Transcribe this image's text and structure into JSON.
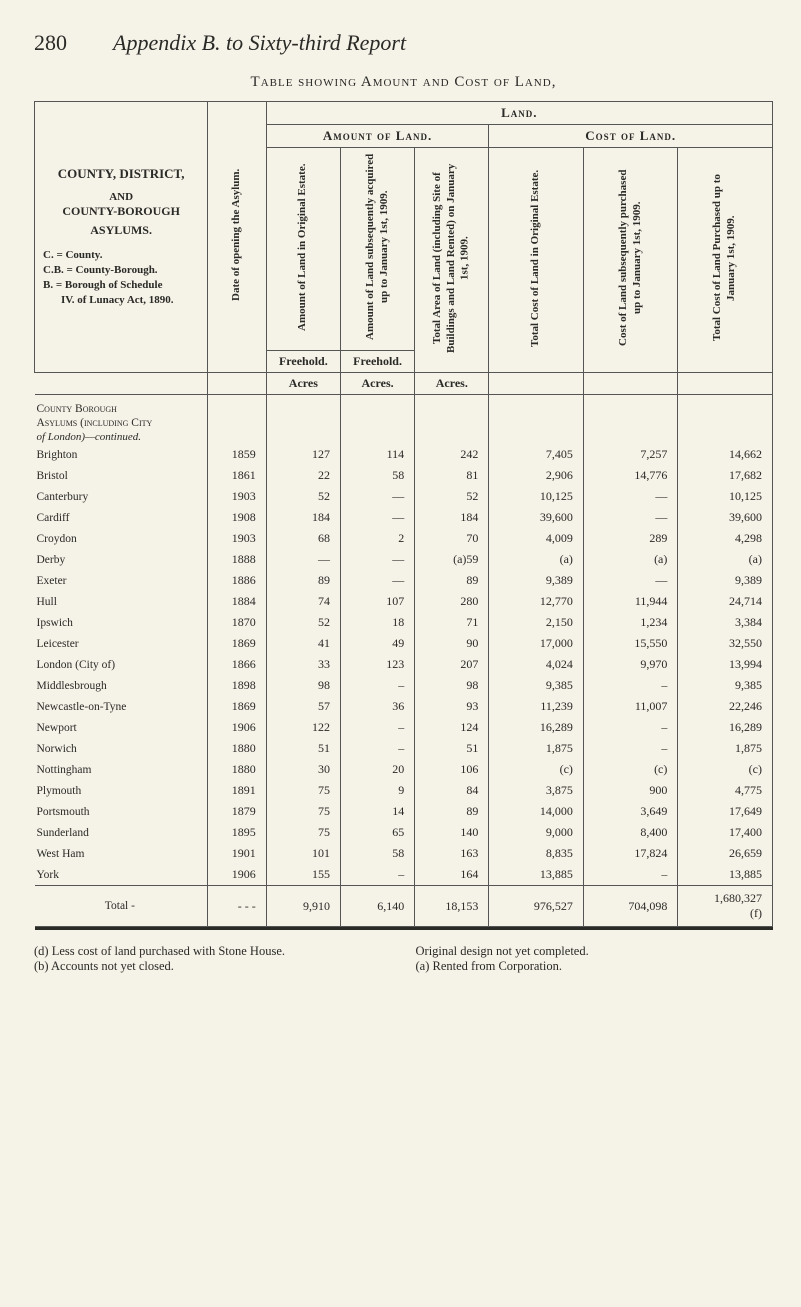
{
  "page_number": "280",
  "page_title_prefix": "Appendix B.",
  "page_title_rest": " to Sixty-third Report",
  "table_caption_prefix": "Table showing",
  "table_caption_rest": " Amount and Cost of Land,",
  "header": {
    "land": "Land.",
    "amount_of_land": "Amount of Land.",
    "cost_of_land": "Cost of Land."
  },
  "stub": {
    "county_district": "COUNTY, DISTRICT,",
    "and": "AND",
    "county_borough": "COUNTY-BOROUGH",
    "asylums": "ASYLUMS.",
    "lineC": "C. = County.",
    "lineCB": "C.B. = County-Borough.",
    "lineB": "B. = Borough of Schedule",
    "lineIV": "IV. of Lunacy Act, 1890."
  },
  "col_v": {
    "open": "Date of opening the Asylum.",
    "a1": "Amount of Land in Original Estate.",
    "a2": "Amount of Land subsequently acquired up to January 1st, 1909.",
    "a3": "Total Area of Land (including Site of Buildings and Land Rented) on January 1st, 1909.",
    "c1": "Total Cost of Land in Original Estate.",
    "c2": "Cost of Land subsequently purchased up to January 1st, 1909.",
    "c3": "Total Cost of Land Purchased up to January 1st, 1909."
  },
  "sub": {
    "freehold": "Freehold.",
    "acres": "Acres",
    "acres_dot": "Acres."
  },
  "section_head": {
    "l1": "County Borough",
    "l2": "Asylums (including City",
    "l3": "of London)—continued."
  },
  "rows": [
    {
      "name": "Brighton",
      "y": "1859",
      "a1": "127",
      "a2": "114",
      "a3": "242",
      "c1": "7,405",
      "c2": "7,257",
      "c3": "14,662"
    },
    {
      "name": "Bristol",
      "y": "1861",
      "a1": "22",
      "a2": "58",
      "a3": "81",
      "c1": "2,906",
      "c2": "14,776",
      "c3": "17,682"
    },
    {
      "name": "Canterbury",
      "y": "1903",
      "a1": "52",
      "a2": "—",
      "a3": "52",
      "c1": "10,125",
      "c2": "—",
      "c3": "10,125"
    },
    {
      "name": "Cardiff",
      "y": "1908",
      "a1": "184",
      "a2": "—",
      "a3": "184",
      "c1": "39,600",
      "c2": "—",
      "c3": "39,600"
    },
    {
      "name": "Croydon",
      "y": "1903",
      "a1": "68",
      "a2": "2",
      "a3": "70",
      "c1": "4,009",
      "c2": "289",
      "c3": "4,298"
    },
    {
      "name": "Derby",
      "y": "1888",
      "a1": "—",
      "a2": "—",
      "a3": "(a)59",
      "c1": "(a)",
      "c2": "(a)",
      "c3": "(a)"
    },
    {
      "name": "Exeter",
      "y": "1886",
      "a1": "89",
      "a2": "—",
      "a3": "89",
      "c1": "9,389",
      "c2": "—",
      "c3": "9,389"
    },
    {
      "name": "Hull",
      "y": "1884",
      "a1": "74",
      "a2": "107",
      "a3": "280",
      "c1": "12,770",
      "c2": "11,944",
      "c3": "24,714"
    },
    {
      "name": "Ipswich",
      "y": "1870",
      "a1": "52",
      "a2": "18",
      "a3": "71",
      "c1": "2,150",
      "c2": "1,234",
      "c3": "3,384"
    },
    {
      "name": "Leicester",
      "y": "1869",
      "a1": "41",
      "a2": "49",
      "a3": "90",
      "c1": "17,000",
      "c2": "15,550",
      "c3": "32,550"
    },
    {
      "name": "London (City of)",
      "y": "1866",
      "a1": "33",
      "a2": "123",
      "a3": "207",
      "c1": "4,024",
      "c2": "9,970",
      "c3": "13,994"
    },
    {
      "name": "Middlesbrough",
      "y": "1898",
      "a1": "98",
      "a2": "–",
      "a3": "98",
      "c1": "9,385",
      "c2": "–",
      "c3": "9,385"
    },
    {
      "name": "Newcastle-on-Tyne",
      "y": "1869",
      "a1": "57",
      "a2": "36",
      "a3": "93",
      "c1": "11,239",
      "c2": "11,007",
      "c3": "22,246"
    },
    {
      "name": "Newport",
      "y": "1906",
      "a1": "122",
      "a2": "–",
      "a3": "124",
      "c1": "16,289",
      "c2": "–",
      "c3": "16,289"
    },
    {
      "name": "Norwich",
      "y": "1880",
      "a1": "51",
      "a2": "–",
      "a3": "51",
      "c1": "1,875",
      "c2": "–",
      "c3": "1,875"
    },
    {
      "name": "Nottingham",
      "y": "1880",
      "a1": "30",
      "a2": "20",
      "a3": "106",
      "c1": "(c)",
      "c2": "(c)",
      "c3": "(c)"
    },
    {
      "name": "Plymouth",
      "y": "1891",
      "a1": "75",
      "a2": "9",
      "a3": "84",
      "c1": "3,875",
      "c2": "900",
      "c3": "4,775"
    },
    {
      "name": "Portsmouth",
      "y": "1879",
      "a1": "75",
      "a2": "14",
      "a3": "89",
      "c1": "14,000",
      "c2": "3,649",
      "c3": "17,649"
    },
    {
      "name": "Sunderland",
      "y": "1895",
      "a1": "75",
      "a2": "65",
      "a3": "140",
      "c1": "9,000",
      "c2": "8,400",
      "c3": "17,400"
    },
    {
      "name": "West Ham",
      "y": "1901",
      "a1": "101",
      "a2": "58",
      "a3": "163",
      "c1": "8,835",
      "c2": "17,824",
      "c3": "26,659"
    },
    {
      "name": "York",
      "y": "1906",
      "a1": "155",
      "a2": "–",
      "a3": "164",
      "c1": "13,885",
      "c2": "–",
      "c3": "13,885"
    }
  ],
  "total": {
    "label": "Total -",
    "y": "-  -  -",
    "a1": "9,910",
    "a2": "6,140",
    "a3": "18,153",
    "c1": "976,527",
    "c2": "704,098",
    "c3": "1,680,327\n(f)"
  },
  "footnotes": {
    "left": "(d) Less cost of land purchased with Stone House.\n(b) Accounts not yet closed.",
    "right": "Original design not yet completed.\n(a) Rented from Corporation."
  }
}
